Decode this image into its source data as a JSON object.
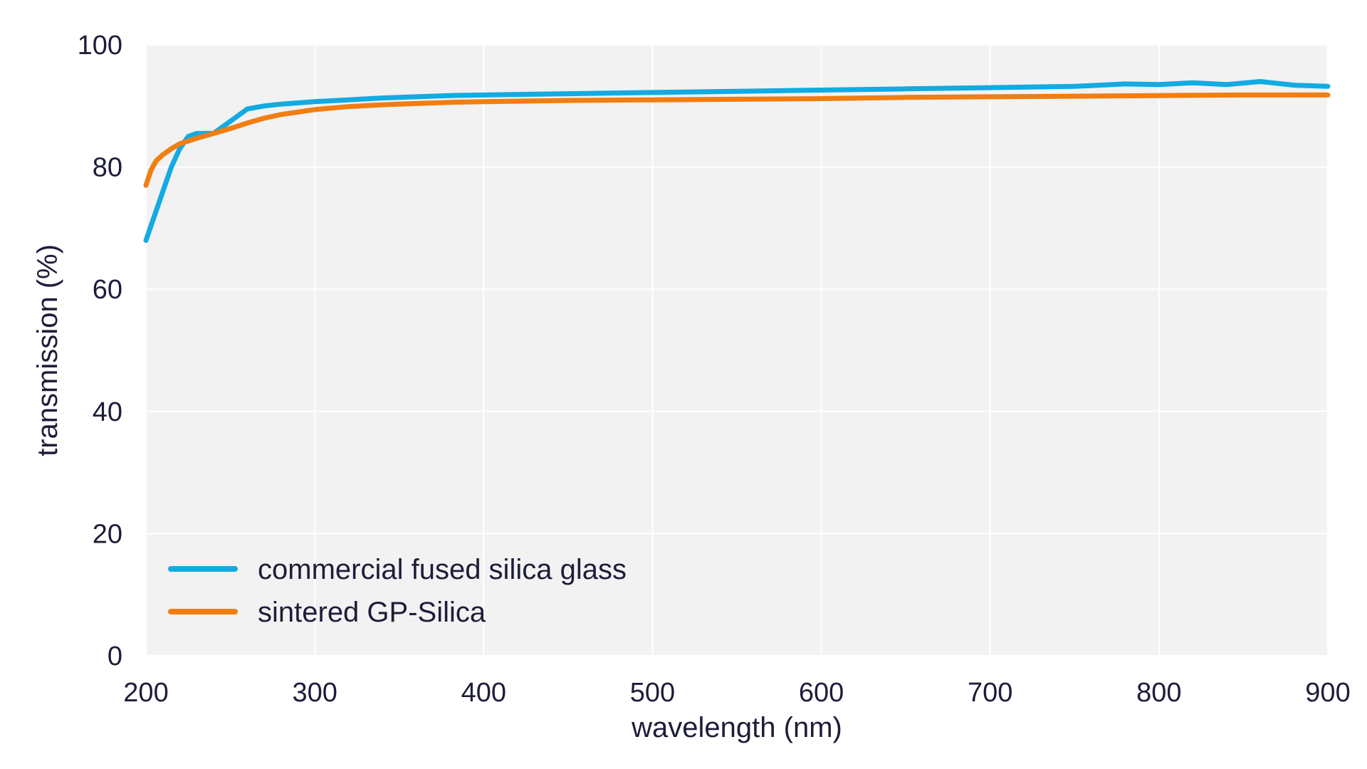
{
  "chart_data": {
    "type": "line",
    "xlabel": "wavelength (nm)",
    "ylabel": "transmission (%)",
    "xlim": [
      200,
      900
    ],
    "ylim": [
      0,
      100
    ],
    "xticks": [
      200,
      300,
      400,
      500,
      600,
      700,
      800,
      900
    ],
    "yticks": [
      0,
      20,
      40,
      60,
      80,
      100
    ],
    "grid": true,
    "legend_position": "bottom-left",
    "plot_background": "#f2f2f2",
    "series": [
      {
        "name": "commercial fused silica glass",
        "color": "#12abe2",
        "x": [
          200,
          205,
          210,
          215,
          220,
          225,
          230,
          240,
          250,
          260,
          270,
          280,
          290,
          300,
          320,
          340,
          360,
          380,
          400,
          450,
          500,
          550,
          600,
          650,
          700,
          750,
          780,
          800,
          820,
          840,
          860,
          880,
          900
        ],
        "y": [
          68,
          72,
          76,
          80,
          83,
          85,
          85.5,
          85.5,
          87.5,
          89.5,
          90,
          90.3,
          90.5,
          90.7,
          91,
          91.3,
          91.5,
          91.7,
          91.8,
          92,
          92.2,
          92.4,
          92.6,
          92.8,
          93,
          93.2,
          93.6,
          93.5,
          93.8,
          93.5,
          94,
          93.4,
          93.2
        ]
      },
      {
        "name": "sintered GP-Silica",
        "color": "#f07e12",
        "x": [
          200,
          203,
          206,
          210,
          215,
          220,
          230,
          240,
          250,
          260,
          270,
          280,
          290,
          300,
          320,
          340,
          360,
          380,
          400,
          450,
          500,
          550,
          600,
          650,
          700,
          750,
          800,
          850,
          900
        ],
        "y": [
          77,
          79.5,
          81,
          82,
          83,
          83.8,
          84.7,
          85.5,
          86.3,
          87.2,
          88,
          88.6,
          89,
          89.4,
          89.9,
          90.2,
          90.4,
          90.6,
          90.7,
          90.9,
          91,
          91.1,
          91.2,
          91.4,
          91.5,
          91.6,
          91.7,
          91.8,
          91.8
        ]
      }
    ]
  }
}
